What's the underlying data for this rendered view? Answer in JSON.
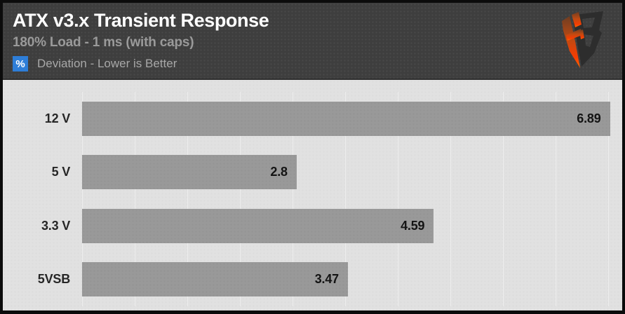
{
  "header": {
    "title": "ATX v3.x Transient Response",
    "subtitle": "180% Load - 1 ms (with caps)",
    "legend_badge": "%",
    "legend_note": "Deviation - Lower is Better",
    "logo_text": "HB"
  },
  "chart_data": {
    "type": "bar",
    "orientation": "horizontal",
    "title": "ATX v3.x Transient Response",
    "subtitle": "180% Load - 1 ms (with caps)",
    "value_unit": "%",
    "note": "Deviation - Lower is Better",
    "categories": [
      "12 V",
      "5 V",
      "3.3 V",
      "5VSB"
    ],
    "values": [
      6.89,
      2.8,
      4.59,
      3.47
    ],
    "xlim": [
      0,
      7.05
    ],
    "grid": true,
    "legend_position": "none",
    "colors": {
      "bar": "#999999",
      "plot_bg": "#e1e1e1",
      "header_bg": "#3e3e3e",
      "accent_blue": "#2e7ed8",
      "value_label": "#141414",
      "title_text": "#ffffff",
      "subtitle_text": "#9a9a9a",
      "logo_orange": "#f63c02",
      "logo_dark": "#2d2d2d"
    }
  }
}
